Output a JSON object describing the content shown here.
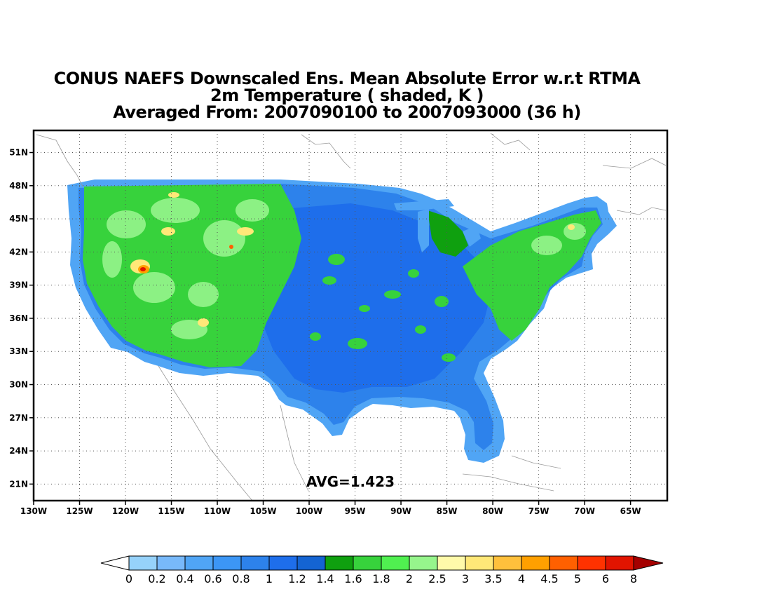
{
  "titles": [
    "CONUS NAEFS Downscaled Ens. Mean Absolute Error w.r.t RTMA",
    "2m Temperature ( shaded, K )",
    "Averaged From: 2007090100 to 2007093000 (36 h)"
  ],
  "map": {
    "lon_range": [
      -130,
      -61
    ],
    "lat_range": [
      19.5,
      53
    ],
    "lon_ticks": [
      {
        "v": -130,
        "t": "130W"
      },
      {
        "v": -125,
        "t": "125W"
      },
      {
        "v": -120,
        "t": "120W"
      },
      {
        "v": -115,
        "t": "115W"
      },
      {
        "v": -110,
        "t": "110W"
      },
      {
        "v": -105,
        "t": "105W"
      },
      {
        "v": -100,
        "t": "100W"
      },
      {
        "v": -95,
        "t": "95W"
      },
      {
        "v": -90,
        "t": "90W"
      },
      {
        "v": -85,
        "t": "85W"
      },
      {
        "v": -80,
        "t": "80W"
      },
      {
        "v": -75,
        "t": "75W"
      },
      {
        "v": -70,
        "t": "70W"
      },
      {
        "v": -65,
        "t": "65W"
      }
    ],
    "lat_ticks": [
      {
        "v": 21,
        "t": "21N"
      },
      {
        "v": 24,
        "t": "24N"
      },
      {
        "v": 27,
        "t": "27N"
      },
      {
        "v": 30,
        "t": "30N"
      },
      {
        "v": 33,
        "t": "33N"
      },
      {
        "v": 36,
        "t": "36N"
      },
      {
        "v": 39,
        "t": "39N"
      },
      {
        "v": 42,
        "t": "42N"
      },
      {
        "v": 45,
        "t": "45N"
      },
      {
        "v": 48,
        "t": "48N"
      },
      {
        "v": 51,
        "t": "51N"
      }
    ],
    "grid": "dotted",
    "avg_label": "AVG=1.423"
  },
  "colorbar": {
    "labels": [
      "0",
      "0.2",
      "0.4",
      "0.6",
      "0.8",
      "1",
      "1.2",
      "1.4",
      "1.6",
      "1.8",
      "2",
      "2.5",
      "3",
      "3.5",
      "4",
      "4.5",
      "5",
      "6",
      "8"
    ],
    "colors": [
      "#96d2fa",
      "#78b9fa",
      "#50a5f5",
      "#3c96f5",
      "#2d82eb",
      "#1e6eeb",
      "#1464d2",
      "#0fa00f",
      "#37d23c",
      "#50f050",
      "#96f58c",
      "#fffaaa",
      "#ffe878",
      "#ffc03c",
      "#ffa000",
      "#ff6000",
      "#ff3200",
      "#e11400",
      "#c00000"
    ],
    "below_color": "#ffffff",
    "above_color": "#a50000"
  }
}
